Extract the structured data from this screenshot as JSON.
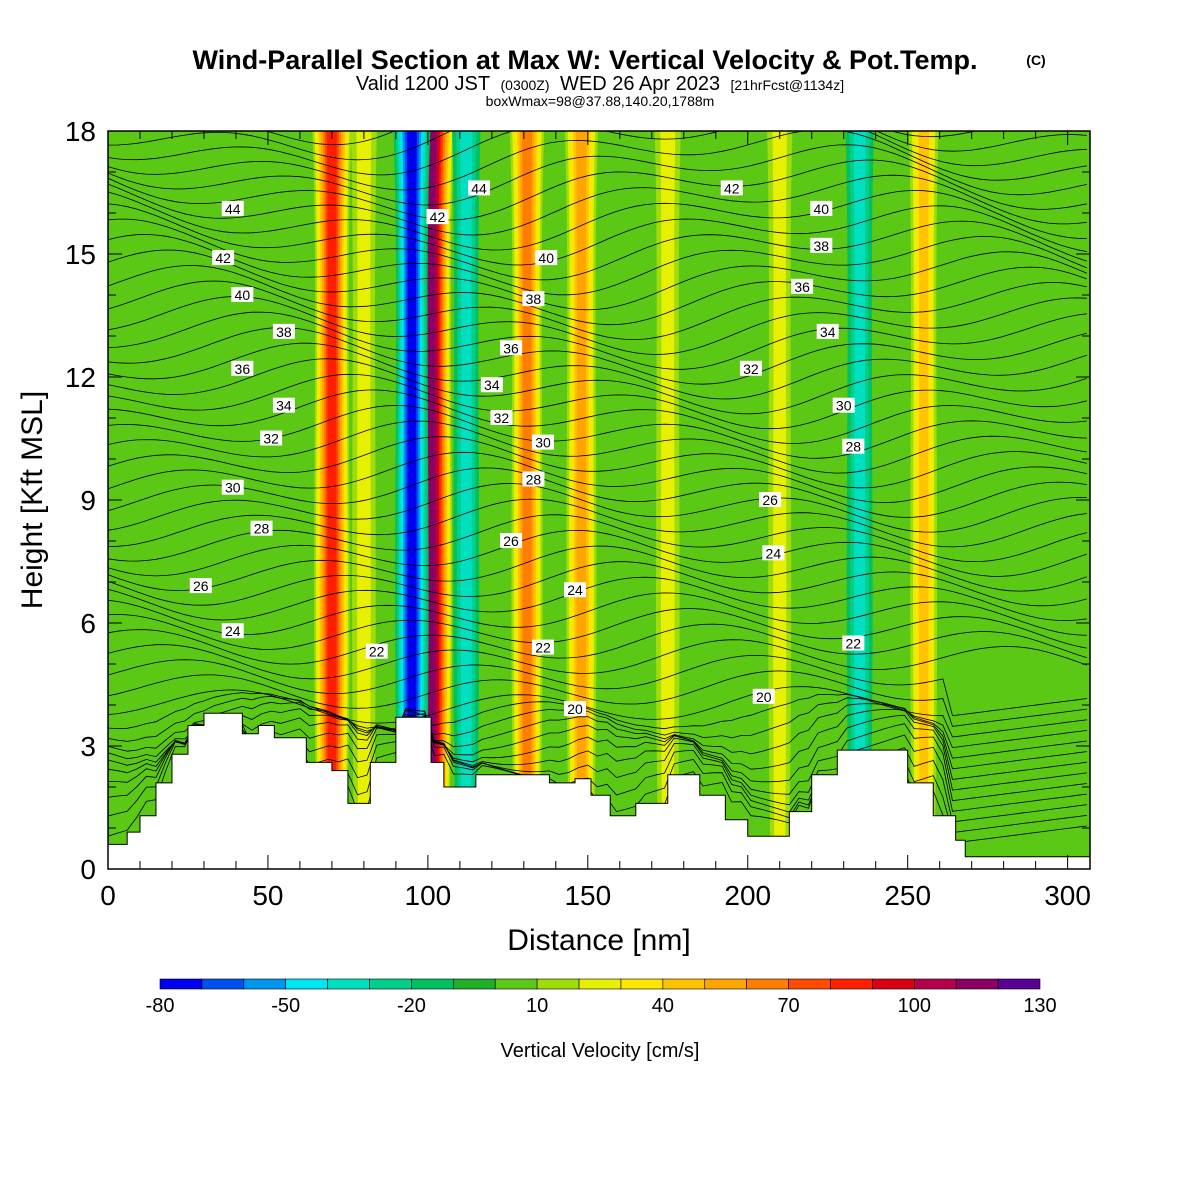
{
  "title": {
    "line1": "Wind-Parallel Section at Max W: Vertical Velocity & Pot.Temp.",
    "line1_mark": "(C)",
    "line2_a": "Valid 1200 JST",
    "line2_b": "(0300Z)",
    "line2_c": "WED 26 Apr 2023",
    "line2_d": "[21hrFcst@1134z]",
    "line3": "boxWmax=98@37.88,140.20,1788m"
  },
  "chart_data": {
    "type": "heatmap",
    "xlabel": "Distance [nm]",
    "ylabel": "Height [Kft MSL]",
    "xlim": [
      0,
      307
    ],
    "ylim": [
      0,
      18
    ],
    "x_ticks": [
      "0",
      "50",
      "100",
      "150",
      "200",
      "250",
      "300"
    ],
    "y_ticks": [
      "0",
      "3",
      "6",
      "9",
      "12",
      "15",
      "18"
    ],
    "colorbar": {
      "label": "Vertical Velocity [cm/s]",
      "tick_labels": [
        "-80",
        "-50",
        "-20",
        "10",
        "40",
        "70",
        "100",
        "130"
      ],
      "levels": [
        -80,
        -70,
        -60,
        -50,
        -40,
        -30,
        -20,
        -10,
        0,
        10,
        20,
        30,
        40,
        50,
        60,
        70,
        80,
        90,
        100,
        110,
        120,
        130
      ],
      "colors": [
        "#0000f0",
        "#0050f0",
        "#0096f0",
        "#00e6f5",
        "#00e0c0",
        "#00d08c",
        "#00c060",
        "#20b028",
        "#5ac814",
        "#a0dc0a",
        "#e6f000",
        "#ffe600",
        "#ffc300",
        "#ffa500",
        "#ff7d00",
        "#ff4b00",
        "#ff1e00",
        "#dc0014",
        "#b4004b",
        "#8c0064",
        "#5a0096"
      ]
    },
    "vertical_velocity_bands": [
      {
        "x": 70,
        "value": 80
      },
      {
        "x": 101,
        "value": 110
      },
      {
        "x": 95,
        "value": -70
      },
      {
        "x": 131,
        "value": 60
      },
      {
        "x": 148,
        "value": 55
      },
      {
        "x": 80,
        "value": 25
      },
      {
        "x": 112,
        "value": -35
      },
      {
        "x": 175,
        "value": 25
      },
      {
        "x": 210,
        "value": 22
      },
      {
        "x": 235,
        "value": -35
      },
      {
        "x": 255,
        "value": 40
      }
    ],
    "terrain_height_kft": [
      {
        "x": 0,
        "h": 0.6
      },
      {
        "x": 6,
        "h": 0.9
      },
      {
        "x": 10,
        "h": 1.3
      },
      {
        "x": 15,
        "h": 2.1
      },
      {
        "x": 20,
        "h": 2.8
      },
      {
        "x": 25,
        "h": 3.5
      },
      {
        "x": 30,
        "h": 3.8
      },
      {
        "x": 37,
        "h": 3.8
      },
      {
        "x": 42,
        "h": 3.3
      },
      {
        "x": 47,
        "h": 3.5
      },
      {
        "x": 52,
        "h": 3.2
      },
      {
        "x": 57,
        "h": 3.2
      },
      {
        "x": 62,
        "h": 2.6
      },
      {
        "x": 70,
        "h": 2.4
      },
      {
        "x": 75,
        "h": 1.6
      },
      {
        "x": 82,
        "h": 2.6
      },
      {
        "x": 90,
        "h": 3.7
      },
      {
        "x": 96,
        "h": 3.7
      },
      {
        "x": 101,
        "h": 2.6
      },
      {
        "x": 105,
        "h": 2.0
      },
      {
        "x": 115,
        "h": 2.3
      },
      {
        "x": 130,
        "h": 2.3
      },
      {
        "x": 138,
        "h": 2.1
      },
      {
        "x": 146,
        "h": 2.2
      },
      {
        "x": 151,
        "h": 1.8
      },
      {
        "x": 157,
        "h": 1.3
      },
      {
        "x": 165,
        "h": 1.6
      },
      {
        "x": 175,
        "h": 2.3
      },
      {
        "x": 185,
        "h": 1.8
      },
      {
        "x": 193,
        "h": 1.2
      },
      {
        "x": 200,
        "h": 0.8
      },
      {
        "x": 207,
        "h": 0.8
      },
      {
        "x": 213,
        "h": 1.4
      },
      {
        "x": 220,
        "h": 2.3
      },
      {
        "x": 228,
        "h": 2.9
      },
      {
        "x": 240,
        "h": 2.9
      },
      {
        "x": 250,
        "h": 2.1
      },
      {
        "x": 258,
        "h": 1.3
      },
      {
        "x": 265,
        "h": 0.7
      },
      {
        "x": 268,
        "h": 0.3
      },
      {
        "x": 307,
        "h": 0.4
      }
    ],
    "theta_contour_labels": [
      {
        "text": "44",
        "x": 39,
        "y": 16.1
      },
      {
        "text": "42",
        "x": 36,
        "y": 14.9
      },
      {
        "text": "40",
        "x": 42,
        "y": 14.0
      },
      {
        "text": "38",
        "x": 55,
        "y": 13.1
      },
      {
        "text": "36",
        "x": 42,
        "y": 12.2
      },
      {
        "text": "34",
        "x": 55,
        "y": 11.3
      },
      {
        "text": "32",
        "x": 51,
        "y": 10.5
      },
      {
        "text": "30",
        "x": 39,
        "y": 9.3
      },
      {
        "text": "28",
        "x": 48,
        "y": 8.3
      },
      {
        "text": "26",
        "x": 29,
        "y": 6.9
      },
      {
        "text": "24",
        "x": 39,
        "y": 5.8
      },
      {
        "text": "22",
        "x": 84,
        "y": 5.3
      },
      {
        "text": "42",
        "x": 103,
        "y": 15.9
      },
      {
        "text": "44",
        "x": 116,
        "y": 16.6
      },
      {
        "text": "40",
        "x": 137,
        "y": 14.9
      },
      {
        "text": "38",
        "x": 133,
        "y": 13.9
      },
      {
        "text": "36",
        "x": 126,
        "y": 12.7
      },
      {
        "text": "34",
        "x": 120,
        "y": 11.8
      },
      {
        "text": "32",
        "x": 123,
        "y": 11.0
      },
      {
        "text": "30",
        "x": 136,
        "y": 10.4
      },
      {
        "text": "28",
        "x": 133,
        "y": 9.5
      },
      {
        "text": "26",
        "x": 126,
        "y": 8.0
      },
      {
        "text": "24",
        "x": 146,
        "y": 6.8
      },
      {
        "text": "22",
        "x": 136,
        "y": 5.4
      },
      {
        "text": "20",
        "x": 146,
        "y": 3.9
      },
      {
        "text": "42",
        "x": 195,
        "y": 16.6
      },
      {
        "text": "40",
        "x": 223,
        "y": 16.1
      },
      {
        "text": "38",
        "x": 223,
        "y": 15.2
      },
      {
        "text": "36",
        "x": 217,
        "y": 14.2
      },
      {
        "text": "34",
        "x": 225,
        "y": 13.1
      },
      {
        "text": "32",
        "x": 201,
        "y": 12.2
      },
      {
        "text": "30",
        "x": 230,
        "y": 11.3
      },
      {
        "text": "28",
        "x": 233,
        "y": 10.3
      },
      {
        "text": "26",
        "x": 207,
        "y": 9.0
      },
      {
        "text": "24",
        "x": 208,
        "y": 7.7
      },
      {
        "text": "22",
        "x": 233,
        "y": 5.5
      },
      {
        "text": "20",
        "x": 205,
        "y": 4.2
      }
    ]
  }
}
